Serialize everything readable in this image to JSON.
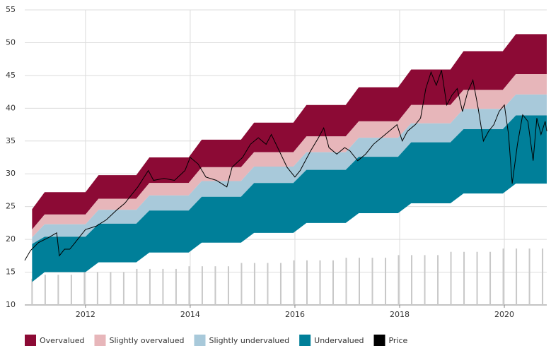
{
  "chart_data": {
    "type": "valuation-bands",
    "xlim": [
      2010.84,
      2020.81
    ],
    "xticks": [
      2012,
      2014,
      2016,
      2018,
      2020
    ],
    "ylim": [
      10,
      55
    ],
    "yticks": [
      10,
      15,
      20,
      25,
      30,
      35,
      40,
      45,
      50,
      55
    ],
    "grid": true,
    "legend": "bottom",
    "band_x": [
      2010.98,
      2011.22,
      2012.0,
      2012.25,
      2012.97,
      2013.22,
      2013.97,
      2014.22,
      2014.97,
      2015.22,
      2015.97,
      2016.22,
      2016.97,
      2017.22,
      2017.97,
      2018.22,
      2018.97,
      2019.22,
      2019.97,
      2020.22,
      2020.81
    ],
    "series": [
      {
        "name": "Overvalued",
        "color": "#8c0a35",
        "low": [
          21.5,
          23.8,
          23.8,
          26.2,
          26.2,
          28.6,
          28.6,
          31.0,
          31.0,
          33.3,
          33.3,
          35.7,
          35.7,
          38.0,
          38.0,
          40.5,
          40.5,
          42.8,
          42.8,
          45.2,
          45.2
        ],
        "high": [
          24.6,
          27.2,
          27.2,
          29.8,
          29.8,
          32.5,
          32.5,
          35.2,
          35.2,
          37.8,
          37.8,
          40.5,
          40.5,
          43.2,
          43.2,
          45.9,
          45.9,
          48.7,
          48.7,
          51.3,
          51.3
        ]
      },
      {
        "name": "Slightly overvalued",
        "color": "#e7b6ba",
        "low": [
          20.3,
          22.3,
          22.3,
          24.5,
          24.5,
          26.7,
          26.7,
          28.9,
          28.9,
          31.1,
          31.1,
          33.3,
          33.3,
          35.5,
          35.5,
          37.7,
          37.7,
          39.9,
          39.9,
          42.1,
          42.1
        ],
        "high": [
          21.5,
          23.8,
          23.8,
          26.2,
          26.2,
          28.6,
          28.6,
          31.0,
          31.0,
          33.3,
          33.3,
          35.7,
          35.7,
          38.0,
          38.0,
          40.5,
          40.5,
          42.8,
          42.8,
          45.2,
          45.2
        ]
      },
      {
        "name": "Slightly undervalued",
        "color": "#a8c9da",
        "low": [
          19.3,
          20.4,
          20.4,
          22.4,
          22.4,
          24.4,
          24.4,
          26.5,
          26.5,
          28.6,
          28.6,
          30.6,
          30.6,
          32.6,
          32.6,
          34.8,
          34.8,
          36.8,
          36.8,
          38.9,
          38.9
        ],
        "high": [
          20.3,
          22.3,
          22.3,
          24.5,
          24.5,
          26.7,
          26.7,
          28.9,
          28.9,
          31.1,
          31.1,
          33.3,
          33.3,
          35.5,
          35.5,
          37.7,
          37.7,
          39.9,
          39.9,
          42.1,
          42.1
        ]
      },
      {
        "name": "Undervalued",
        "color": "#007f99",
        "low": [
          13.5,
          15.0,
          15.0,
          16.5,
          16.5,
          18.0,
          18.0,
          19.5,
          19.5,
          21.0,
          21.0,
          22.5,
          22.5,
          24.0,
          24.0,
          25.5,
          25.5,
          27.0,
          27.0,
          28.5,
          28.5
        ],
        "high": [
          19.3,
          20.4,
          20.4,
          22.4,
          22.4,
          24.4,
          24.4,
          26.5,
          26.5,
          28.6,
          28.6,
          30.6,
          30.6,
          32.6,
          32.6,
          34.8,
          34.8,
          36.8,
          36.8,
          38.9,
          38.9
        ]
      },
      {
        "name": "Price",
        "color": "#000000",
        "x": [
          2010.84,
          2010.95,
          2011.1,
          2011.3,
          2011.45,
          2011.5,
          2011.6,
          2011.7,
          2011.8,
          2011.9,
          2012.0,
          2012.2,
          2012.4,
          2012.6,
          2012.75,
          2012.9,
          2013.0,
          2013.2,
          2013.3,
          2013.5,
          2013.7,
          2013.9,
          2014.0,
          2014.15,
          2014.3,
          2014.5,
          2014.7,
          2014.8,
          2015.0,
          2015.15,
          2015.3,
          2015.45,
          2015.55,
          2015.7,
          2015.85,
          2016.0,
          2016.1,
          2016.3,
          2016.45,
          2016.55,
          2016.65,
          2016.8,
          2016.95,
          2017.05,
          2017.2,
          2017.35,
          2017.5,
          2017.65,
          2017.8,
          2017.95,
          2018.05,
          2018.15,
          2018.3,
          2018.4,
          2018.5,
          2018.6,
          2018.7,
          2018.8,
          2018.9,
          2019.0,
          2019.1,
          2019.2,
          2019.3,
          2019.4,
          2019.5,
          2019.6,
          2019.7,
          2019.8,
          2019.9,
          2020.0,
          2020.08,
          2020.15,
          2020.25,
          2020.35,
          2020.45,
          2020.55,
          2020.62,
          2020.7,
          2020.78,
          2020.81
        ],
        "values": [
          16.8,
          18.3,
          19.5,
          20.3,
          21.0,
          17.5,
          18.5,
          18.5,
          19.5,
          20.5,
          21.5,
          22.0,
          23.0,
          24.5,
          25.5,
          27.0,
          28.0,
          30.5,
          29.0,
          29.3,
          29.0,
          30.5,
          32.5,
          31.5,
          29.5,
          29.0,
          28.0,
          31.0,
          32.5,
          34.5,
          35.5,
          34.5,
          36.0,
          33.5,
          31.0,
          29.5,
          30.5,
          33.5,
          35.5,
          37.0,
          34.0,
          33.0,
          34.0,
          33.5,
          32.0,
          33.0,
          34.5,
          35.5,
          36.5,
          37.5,
          35.0,
          36.5,
          37.5,
          38.5,
          43.0,
          45.5,
          43.5,
          45.8,
          40.5,
          42.0,
          43.0,
          39.5,
          42.5,
          44.3,
          40.0,
          35.0,
          36.5,
          37.5,
          39.5,
          40.5,
          36.0,
          28.5,
          34.5,
          39.0,
          38.0,
          32.0,
          38.5,
          36.0,
          38.0,
          36.5
        ]
      }
    ],
    "bars": {
      "color": "#c8c8c8",
      "x": [
        2010.98,
        2011.23,
        2011.48,
        2011.73,
        2011.98,
        2012.23,
        2012.48,
        2012.73,
        2012.98,
        2013.23,
        2013.48,
        2013.73,
        2013.98,
        2014.23,
        2014.48,
        2014.73,
        2014.98,
        2015.23,
        2015.48,
        2015.73,
        2015.98,
        2016.23,
        2016.48,
        2016.73,
        2016.98,
        2017.23,
        2017.48,
        2017.73,
        2017.98,
        2018.23,
        2018.48,
        2018.73,
        2018.98,
        2019.23,
        2019.48,
        2019.73,
        2019.98,
        2020.23,
        2020.48,
        2020.73
      ],
      "values": [
        14.0,
        14.6,
        14.6,
        14.6,
        15.0,
        15.0,
        15.0,
        15.0,
        15.5,
        15.5,
        15.5,
        15.5,
        15.9,
        15.9,
        15.9,
        15.9,
        16.4,
        16.4,
        16.4,
        16.4,
        16.8,
        16.8,
        16.8,
        16.8,
        17.2,
        17.2,
        17.2,
        17.2,
        17.6,
        17.6,
        17.6,
        17.6,
        18.1,
        18.1,
        18.1,
        18.1,
        18.6,
        18.6,
        18.6,
        18.6
      ]
    }
  }
}
